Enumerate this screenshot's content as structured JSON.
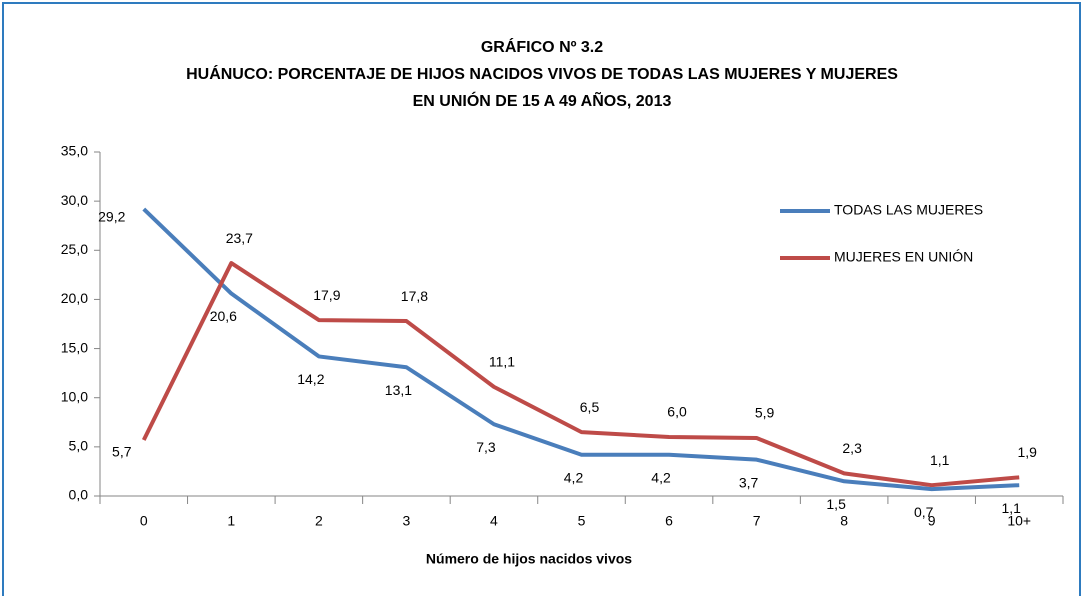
{
  "chart_data": {
    "type": "line",
    "title": [
      "GRÁFICO Nº 3.2",
      "HUÁNUCO: PORCENTAJE DE HIJOS NACIDOS VIVOS DE TODAS LAS MUJERES Y MUJERES",
      "EN UNIÓN DE 15 A 49 AÑOS, 2013"
    ],
    "x_label": "Número de hijos nacidos vivos",
    "categories": [
      "0",
      "1",
      "2",
      "3",
      "4",
      "5",
      "6",
      "7",
      "8",
      "9",
      "10+"
    ],
    "series": [
      {
        "name": "TODAS LAS MUJERES",
        "color": "#4a7ebb",
        "values": [
          29.2,
          20.6,
          14.2,
          13.1,
          7.3,
          4.2,
          4.2,
          3.7,
          1.5,
          0.7,
          1.1
        ],
        "value_labels": [
          "29,2",
          "20,6",
          "14,2",
          "13,1",
          "7,3",
          "4,2",
          "4,2",
          "3,7",
          "1,5",
          "0,7",
          "1,1"
        ]
      },
      {
        "name": "MUJERES EN UNIÓN",
        "color": "#be4b48",
        "values": [
          5.7,
          23.7,
          17.9,
          17.8,
          11.1,
          6.5,
          6.0,
          5.9,
          2.3,
          1.1,
          1.9
        ],
        "value_labels": [
          "5,7",
          "23,7",
          "17,9",
          "17,8",
          "11,1",
          "6,5",
          "6,0",
          "5,9",
          "2,3",
          "1,1",
          "1,9"
        ]
      }
    ],
    "ylim": [
      0,
      35
    ],
    "yticks": [
      {
        "value": 0,
        "label": "0,0"
      },
      {
        "value": 5,
        "label": "5,0"
      },
      {
        "value": 10,
        "label": "10,0"
      },
      {
        "value": 15,
        "label": "15,0"
      },
      {
        "value": 20,
        "label": "20,0"
      },
      {
        "value": 25,
        "label": "25,0"
      },
      {
        "value": 30,
        "label": "30,0"
      },
      {
        "value": 35,
        "label": "35,0"
      }
    ],
    "legend": "upper right",
    "grid": false
  }
}
